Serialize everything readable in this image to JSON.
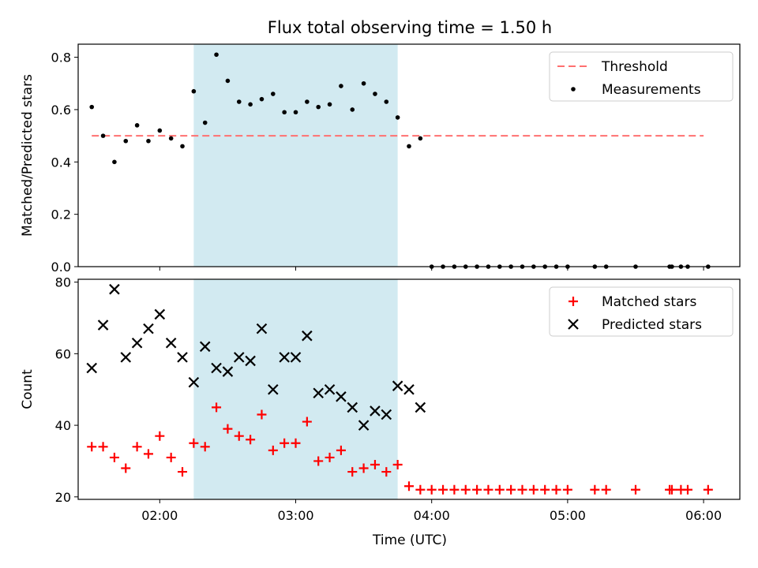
{
  "figure": {
    "title": "Flux total observing time = 1.50 h",
    "xlabel": "Time (UTC)",
    "x_ticks": [
      "02:00",
      "03:00",
      "04:00",
      "05:00",
      "06:00"
    ],
    "shaded_interval": [
      "02:15",
      "03:45"
    ],
    "colors": {
      "shade": "#add8e6",
      "threshold": "#ff7070",
      "measurements": "#000000",
      "matched": "#ff0000",
      "predicted": "#000000"
    }
  },
  "chart_data": [
    {
      "type": "scatter",
      "panel": "top",
      "ylabel": "Matched/Predicted stars",
      "xlim": [
        "01:24",
        "06:16"
      ],
      "ylim": [
        0,
        0.85
      ],
      "y_ticks": [
        "0.0",
        "0.2",
        "0.4",
        "0.6",
        "0.8"
      ],
      "legend": {
        "position": "top-right",
        "entries": [
          "Threshold",
          "Measurements"
        ]
      },
      "series": [
        {
          "name": "Threshold",
          "type": "line",
          "x": [
            "01:30",
            "06:00"
          ],
          "values": [
            0.5,
            0.5
          ]
        },
        {
          "name": "Measurements",
          "type": "scatter",
          "x": [
            "01:30",
            "01:35",
            "01:40",
            "01:45",
            "01:50",
            "01:55",
            "02:00",
            "02:05",
            "02:10",
            "02:15",
            "02:20",
            "02:25",
            "02:30",
            "02:35",
            "02:40",
            "02:45",
            "02:50",
            "02:55",
            "03:00",
            "03:05",
            "03:10",
            "03:15",
            "03:20",
            "03:25",
            "03:30",
            "03:35",
            "03:40",
            "03:45",
            "03:50",
            "03:55",
            "04:00",
            "04:05",
            "04:10",
            "04:15",
            "04:20",
            "04:25",
            "04:30",
            "04:35",
            "04:40",
            "04:45",
            "04:50",
            "04:55",
            "05:00",
            "05:12",
            "05:17",
            "05:30",
            "05:45",
            "05:46",
            "05:50",
            "05:53",
            "06:02"
          ],
          "values": [
            0.61,
            0.5,
            0.4,
            0.48,
            0.54,
            0.48,
            0.52,
            0.49,
            0.46,
            0.67,
            0.55,
            0.81,
            0.71,
            0.63,
            0.62,
            0.64,
            0.66,
            0.59,
            0.59,
            0.63,
            0.61,
            0.62,
            0.69,
            0.6,
            0.7,
            0.66,
            0.63,
            0.57,
            0.46,
            0.49,
            0,
            0,
            0,
            0,
            0,
            0,
            0,
            0,
            0,
            0,
            0,
            0,
            0,
            0,
            0,
            0,
            0,
            0,
            0,
            0,
            0
          ]
        }
      ]
    },
    {
      "type": "scatter",
      "panel": "bottom",
      "ylabel": "Count",
      "xlim": [
        "01:24",
        "06:16"
      ],
      "ylim": [
        19.3,
        80.8
      ],
      "y_ticks": [
        "20",
        "40",
        "60",
        "80"
      ],
      "legend": {
        "position": "top-right",
        "entries": [
          "Matched stars",
          "Predicted stars"
        ]
      },
      "series": [
        {
          "name": "Matched stars",
          "marker": "plus",
          "x": [
            "01:30",
            "01:35",
            "01:40",
            "01:45",
            "01:50",
            "01:55",
            "02:00",
            "02:05",
            "02:10",
            "02:15",
            "02:20",
            "02:25",
            "02:30",
            "02:35",
            "02:40",
            "02:45",
            "02:50",
            "02:55",
            "03:00",
            "03:05",
            "03:10",
            "03:15",
            "03:20",
            "03:25",
            "03:30",
            "03:35",
            "03:40",
            "03:45",
            "03:50",
            "03:55",
            "04:00",
            "04:05",
            "04:10",
            "04:15",
            "04:20",
            "04:25",
            "04:30",
            "04:35",
            "04:40",
            "04:45",
            "04:50",
            "04:55",
            "05:00",
            "05:12",
            "05:17",
            "05:30",
            "05:45",
            "05:46",
            "05:50",
            "05:53",
            "06:02"
          ],
          "values": [
            34,
            34,
            31,
            28,
            34,
            32,
            37,
            31,
            27,
            35,
            34,
            45,
            39,
            37,
            36,
            43,
            33,
            35,
            35,
            41,
            30,
            31,
            33,
            27,
            28,
            29,
            27,
            29,
            23,
            22,
            22,
            22,
            22,
            22,
            22,
            22,
            22,
            22,
            22,
            22,
            22,
            22,
            22,
            22,
            22,
            22,
            22,
            22,
            22,
            22,
            22
          ]
        },
        {
          "name": "Predicted stars",
          "marker": "x",
          "x": [
            "01:30",
            "01:35",
            "01:40",
            "01:45",
            "01:50",
            "01:55",
            "02:00",
            "02:05",
            "02:10",
            "02:15",
            "02:20",
            "02:25",
            "02:30",
            "02:35",
            "02:40",
            "02:45",
            "02:50",
            "02:55",
            "03:00",
            "03:05",
            "03:10",
            "03:15",
            "03:20",
            "03:25",
            "03:30",
            "03:35",
            "03:40",
            "03:45",
            "03:50",
            "03:55"
          ],
          "values": [
            56,
            68,
            78,
            59,
            63,
            67,
            71,
            63,
            59,
            52,
            62,
            56,
            55,
            59,
            58,
            67,
            50,
            59,
            59,
            65,
            49,
            50,
            48,
            45,
            40,
            44,
            43,
            51,
            50,
            45
          ]
        }
      ]
    }
  ]
}
